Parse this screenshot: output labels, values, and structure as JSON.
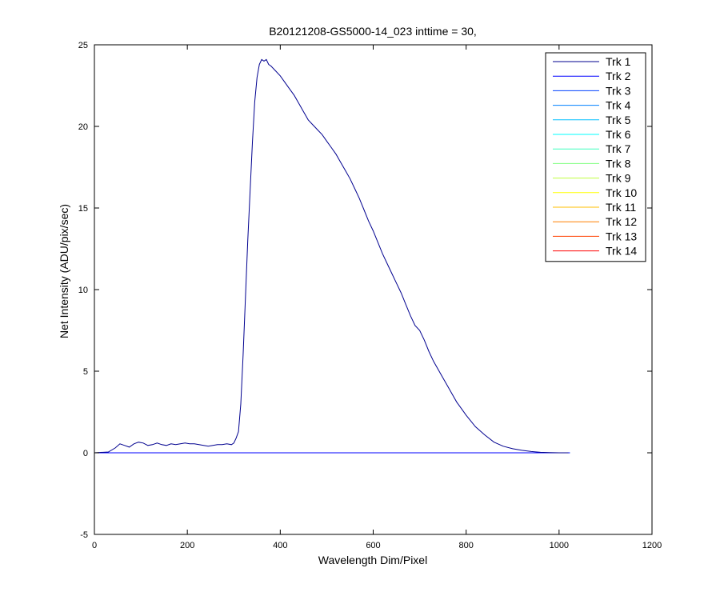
{
  "chart_data": {
    "type": "line",
    "title": "B20121208-GS5000-14_023 inttime = 30,",
    "xlabel": "Wavelength Dim/Pixel",
    "ylabel": "Net Intensity (ADU/pix/sec)",
    "xlim": [
      0,
      1200
    ],
    "ylim": [
      -5,
      25
    ],
    "xticks": [
      0,
      200,
      400,
      600,
      800,
      1000,
      1200
    ],
    "yticks": [
      -5,
      0,
      5,
      10,
      15,
      20,
      25
    ],
    "grid": false,
    "legend_position": "top-right",
    "series": [
      {
        "name": "Trk 1",
        "color": "#00008f",
        "x": [
          0,
          30,
          45,
          55,
          65,
          75,
          85,
          95,
          105,
          115,
          125,
          135,
          145,
          155,
          165,
          175,
          185,
          195,
          205,
          215,
          225,
          235,
          245,
          255,
          265,
          275,
          285,
          295,
          300,
          305,
          310,
          315,
          320,
          325,
          330,
          335,
          340,
          345,
          350,
          355,
          360,
          365,
          370,
          375,
          380,
          390,
          400,
          410,
          420,
          430,
          440,
          450,
          460,
          470,
          480,
          490,
          500,
          510,
          520,
          530,
          540,
          550,
          560,
          570,
          580,
          590,
          600,
          610,
          620,
          630,
          640,
          650,
          660,
          670,
          680,
          690,
          700,
          710,
          720,
          730,
          740,
          750,
          760,
          770,
          780,
          790,
          800,
          820,
          840,
          860,
          880,
          900,
          920,
          940,
          960,
          980,
          1000,
          1020
        ],
        "y": [
          0.0,
          0.05,
          0.3,
          0.55,
          0.45,
          0.35,
          0.55,
          0.65,
          0.6,
          0.45,
          0.5,
          0.6,
          0.5,
          0.45,
          0.55,
          0.5,
          0.55,
          0.6,
          0.55,
          0.55,
          0.5,
          0.45,
          0.4,
          0.45,
          0.5,
          0.5,
          0.55,
          0.5,
          0.6,
          0.9,
          1.3,
          3.0,
          6.0,
          9.5,
          13.0,
          16.0,
          19.0,
          21.5,
          23.0,
          23.8,
          24.1,
          24.0,
          24.1,
          23.8,
          23.7,
          23.4,
          23.1,
          22.7,
          22.3,
          21.9,
          21.4,
          20.9,
          20.4,
          20.1,
          19.8,
          19.5,
          19.1,
          18.7,
          18.3,
          17.8,
          17.3,
          16.8,
          16.2,
          15.6,
          14.9,
          14.2,
          13.6,
          12.9,
          12.2,
          11.6,
          11.0,
          10.4,
          9.8,
          9.1,
          8.4,
          7.8,
          7.5,
          6.9,
          6.2,
          5.6,
          5.1,
          4.6,
          4.1,
          3.6,
          3.1,
          2.7,
          2.3,
          1.6,
          1.1,
          0.65,
          0.4,
          0.25,
          0.15,
          0.08,
          0.03,
          0.01,
          0.0,
          0.0
        ]
      },
      {
        "name": "Trk 2",
        "color": "#0000ff",
        "x": [
          0,
          1023
        ],
        "y": [
          0,
          0
        ]
      },
      {
        "name": "Trk 3",
        "color": "#0040ff",
        "x": [
          0,
          1023
        ],
        "y": [
          0,
          0
        ]
      },
      {
        "name": "Trk 4",
        "color": "#0080ff",
        "x": [
          0,
          1023
        ],
        "y": [
          0,
          0
        ]
      },
      {
        "name": "Trk 5",
        "color": "#00bfff",
        "x": [
          0,
          1023
        ],
        "y": [
          0,
          0
        ]
      },
      {
        "name": "Trk 6",
        "color": "#00ffff",
        "x": [
          0,
          1023
        ],
        "y": [
          0,
          0
        ]
      },
      {
        "name": "Trk 7",
        "color": "#40ffbf",
        "x": [
          0,
          1023
        ],
        "y": [
          0,
          0
        ]
      },
      {
        "name": "Trk 8",
        "color": "#80ff80",
        "x": [
          0,
          1023
        ],
        "y": [
          0,
          0
        ]
      },
      {
        "name": "Trk 9",
        "color": "#bfff40",
        "x": [
          0,
          1023
        ],
        "y": [
          0,
          0
        ]
      },
      {
        "name": "Trk 10",
        "color": "#ffff00",
        "x": [
          0,
          1023
        ],
        "y": [
          0,
          0
        ]
      },
      {
        "name": "Trk 11",
        "color": "#ffbf00",
        "x": [
          0,
          1023
        ],
        "y": [
          0,
          0
        ]
      },
      {
        "name": "Trk 12",
        "color": "#ff8000",
        "x": [
          0,
          1023
        ],
        "y": [
          0,
          0
        ]
      },
      {
        "name": "Trk 13",
        "color": "#ff4000",
        "x": [
          0,
          1023
        ],
        "y": [
          0,
          0
        ]
      },
      {
        "name": "Trk 14",
        "color": "#ff0000",
        "x": [
          0,
          1023
        ],
        "y": [
          0,
          0
        ]
      }
    ]
  }
}
